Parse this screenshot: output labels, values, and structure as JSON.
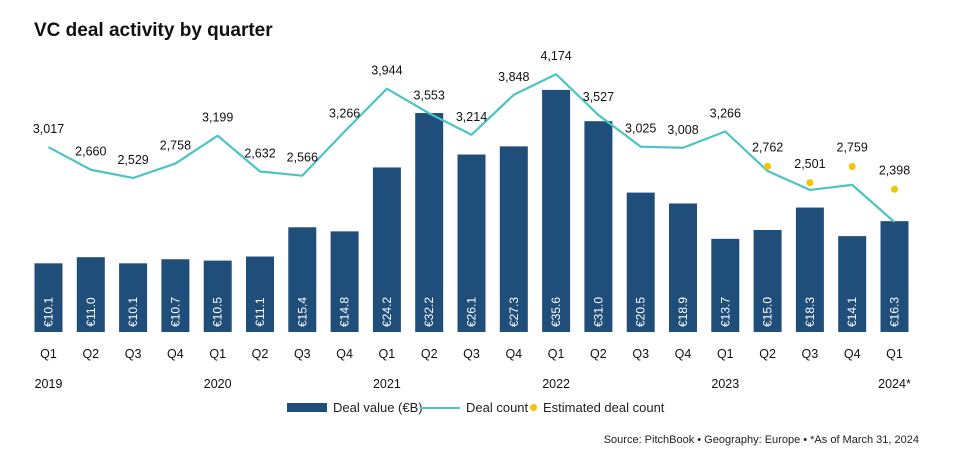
{
  "title": "VC deal activity by quarter",
  "source": "Source: PitchBook  •  Geography: Europe  •  *As of March 31, 2024",
  "colors": {
    "bar": "#1f4e7a",
    "line": "#4cc3c6",
    "estimate": "#f5c400",
    "bar_text": "#ffffff"
  },
  "legend": {
    "bar": "Deal value (€B)",
    "line": "Deal count",
    "estimate": "Estimated deal count"
  },
  "chart_data": {
    "type": "bar",
    "categories": [
      "Q1",
      "Q2",
      "Q3",
      "Q4",
      "Q1",
      "Q2",
      "Q3",
      "Q4",
      "Q1",
      "Q2",
      "Q3",
      "Q4",
      "Q1",
      "Q2",
      "Q3",
      "Q4",
      "Q1",
      "Q2",
      "Q3",
      "Q4",
      "Q1"
    ],
    "years": [
      {
        "label": "2019",
        "index": 0
      },
      {
        "label": "2020",
        "index": 4
      },
      {
        "label": "2021",
        "index": 8
      },
      {
        "label": "2022",
        "index": 12
      },
      {
        "label": "2023",
        "index": 16
      },
      {
        "label": "2024*",
        "index": 20
      }
    ],
    "series": [
      {
        "name": "Deal value (€B)",
        "type": "bar",
        "values": [
          10.1,
          11.0,
          10.1,
          10.7,
          10.5,
          11.1,
          15.4,
          14.8,
          24.2,
          32.2,
          26.1,
          27.3,
          35.6,
          31.0,
          20.5,
          18.9,
          13.7,
          15.0,
          18.3,
          14.1,
          16.3
        ],
        "labels": [
          "€10.1",
          "€11.0",
          "€10.1",
          "€10.7",
          "€10.5",
          "€11.1",
          "€15.4",
          "€14.8",
          "€24.2",
          "€32.2",
          "€26.1",
          "€27.3",
          "€35.6",
          "€31.0",
          "€20.5",
          "€18.9",
          "€13.7",
          "€15.0",
          "€18.3",
          "€14.1",
          "€16.3"
        ]
      },
      {
        "name": "Deal count",
        "type": "line",
        "values": [
          3017,
          2660,
          2529,
          2758,
          3199,
          2632,
          2566,
          3266,
          3944,
          3553,
          3214,
          3848,
          4174,
          3527,
          3025,
          3008,
          3266,
          2762,
          2501,
          2759,
          2398
        ],
        "line_values": [
          3017,
          2660,
          2529,
          2758,
          3199,
          2632,
          2566,
          3266,
          3944,
          3553,
          3214,
          3848,
          4174,
          3527,
          3025,
          3008,
          3266,
          2640,
          2340,
          2420,
          1830
        ],
        "labels": [
          "3,017",
          "2,660",
          "2,529",
          "2,758",
          "3,199",
          "2,632",
          "2,566",
          "3,266",
          "3,944",
          "3,553",
          "3,214",
          "3,848",
          "4,174",
          "3,527",
          "3,025",
          "3,008",
          "3,266",
          "2,762",
          "2,501",
          "2,759",
          "2,398"
        ]
      },
      {
        "name": "Estimated deal count",
        "type": "scatter",
        "start_index": 17,
        "values": [
          2762,
          2501,
          2759,
          2398
        ]
      }
    ]
  }
}
